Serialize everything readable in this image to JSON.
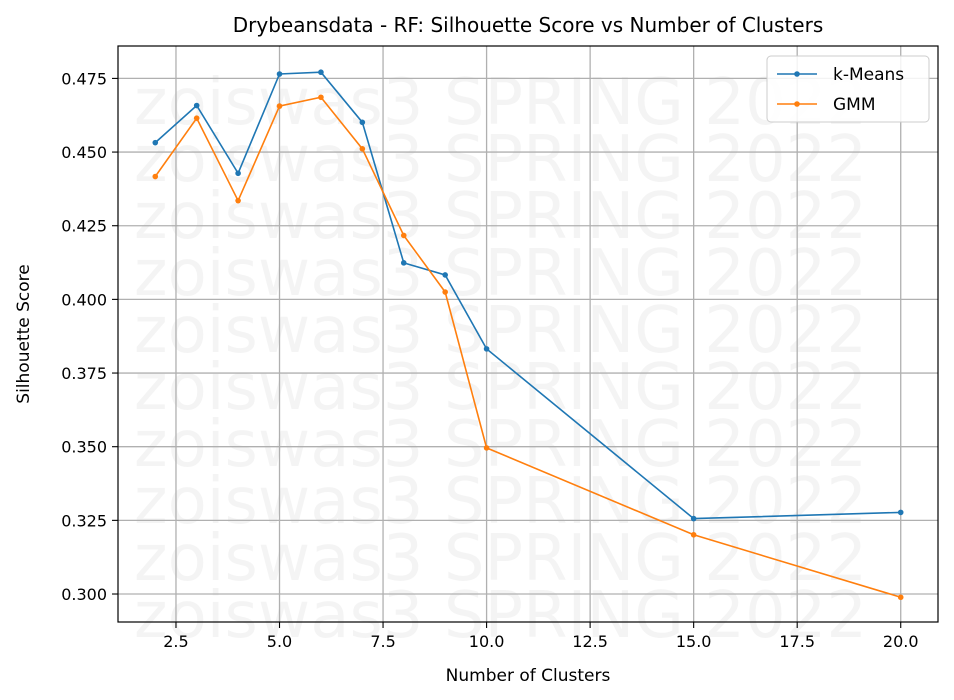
{
  "chart_data": {
    "type": "line",
    "title": "Drybeansdata - RF: Silhouette Score vs Number of Clusters",
    "xlabel": "Number of Clusters",
    "ylabel": "Silhouette Score",
    "xlim": [
      1.1,
      20.9
    ],
    "ylim": [
      0.2905,
      0.486
    ],
    "xticks": [
      "2.5",
      "5.0",
      "7.5",
      "10.0",
      "12.5",
      "15.0",
      "17.5",
      "20.0"
    ],
    "yticks": [
      "0.300",
      "0.325",
      "0.350",
      "0.375",
      "0.400",
      "0.425",
      "0.450",
      "0.475"
    ],
    "grid": true,
    "legend_position": "top-right",
    "watermark": "zoiswas3 SPRING 2022",
    "series": [
      {
        "name": "k-Means",
        "color": "#1f77b4",
        "x": [
          2,
          3,
          4,
          5,
          6,
          7,
          8,
          9,
          10,
          15,
          20
        ],
        "y": [
          0.4532,
          0.4658,
          0.4428,
          0.4765,
          0.4771,
          0.4601,
          0.4124,
          0.4083,
          0.3832,
          0.3256,
          0.3277
        ]
      },
      {
        "name": "GMM",
        "color": "#ff7f0e",
        "x": [
          2,
          3,
          4,
          5,
          6,
          7,
          8,
          9,
          10,
          15,
          20
        ],
        "y": [
          0.4417,
          0.4615,
          0.4335,
          0.4656,
          0.4686,
          0.4511,
          0.4217,
          0.4025,
          0.3496,
          0.3201,
          0.2989
        ]
      }
    ]
  }
}
